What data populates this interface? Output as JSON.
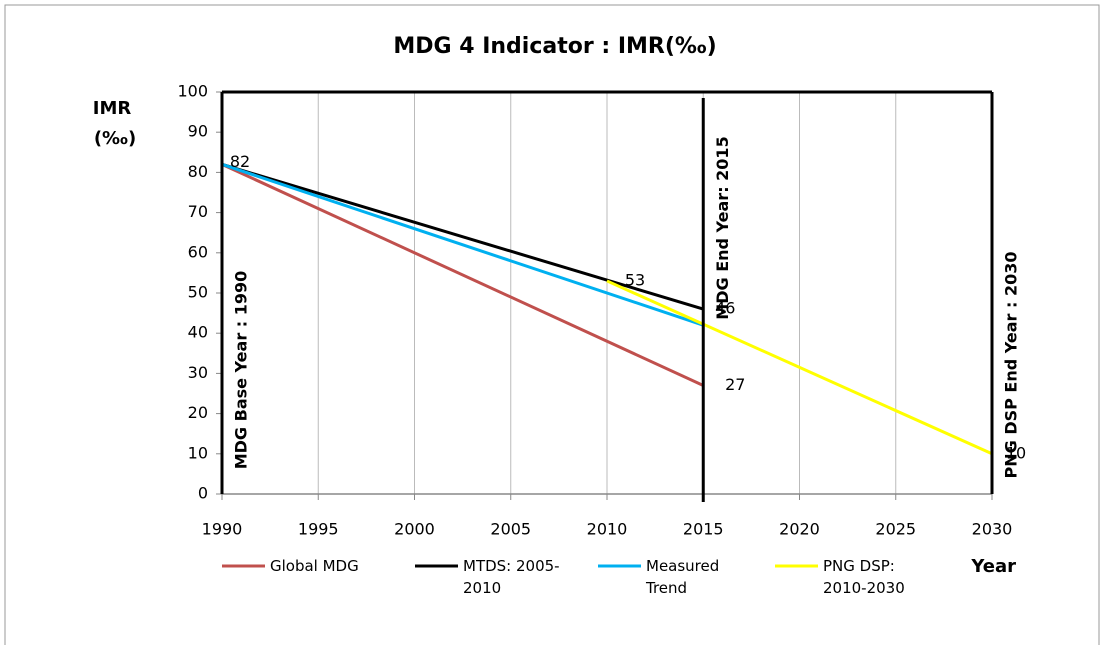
{
  "chart_data": {
    "type": "line",
    "title": "MDG 4 Indicator : IMR(‰)",
    "y_label": [
      "IMR",
      "(‰)"
    ],
    "x_label": "Year",
    "xlim": [
      1990,
      2030
    ],
    "xticks": [
      1990,
      1995,
      2000,
      2005,
      2010,
      2015,
      2020,
      2025,
      2030
    ],
    "ylim": [
      0,
      100
    ],
    "yticks": [
      0,
      10,
      20,
      30,
      40,
      50,
      60,
      70,
      80,
      90,
      100
    ],
    "grid": true,
    "legend": "bottom",
    "series": [
      {
        "name": "Global MDG",
        "color": "#c0504d",
        "x": [
          1990,
          2015
        ],
        "values": [
          82,
          27
        ]
      },
      {
        "name": "MTDS: 2005-2010",
        "color": "#000000",
        "x": [
          1990,
          2015
        ],
        "values": [
          82,
          46
        ]
      },
      {
        "name": "Measured Trend",
        "color": "#00b0f0",
        "x": [
          1990,
          2015
        ],
        "values": [
          82,
          42
        ]
      },
      {
        "name": "PNG DSP: 2010-2030",
        "color": "#ffff00",
        "x": [
          2010,
          2030
        ],
        "values": [
          53,
          10
        ]
      }
    ],
    "reference_lines": [
      {
        "x": 1990,
        "label": "MDG Base Year : 1990"
      },
      {
        "x": 2015,
        "label": "MDG End Year: 2015"
      },
      {
        "x": 2030,
        "label": "PNG DSP End Year : 2030"
      }
    ]
  }
}
